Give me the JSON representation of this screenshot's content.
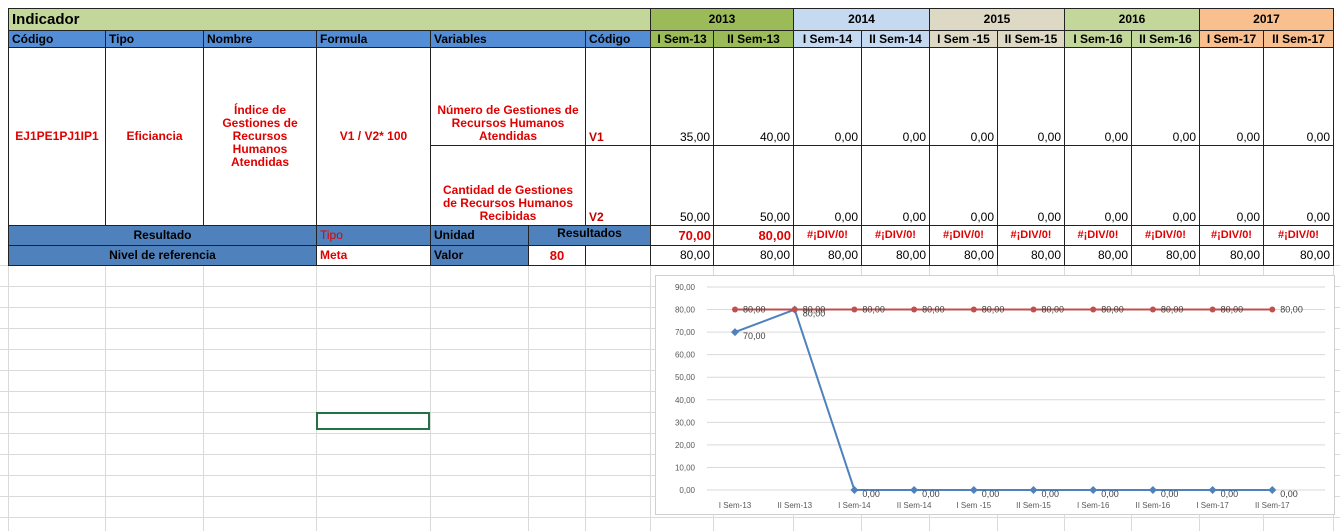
{
  "sheet": {
    "title": "Indicador",
    "years": [
      "2013",
      "2014",
      "2015",
      "2016",
      "2017"
    ],
    "headers": [
      "Código",
      "Tipo",
      "Nombre",
      "Formula",
      "Variables",
      "Código"
    ],
    "periods": [
      "I Sem-13",
      "II Sem-13",
      "I Sem-14",
      "II Sem-14",
      "I Sem -15",
      "II Sem-15",
      "I Sem-16",
      "II Sem-16",
      "I Sem-17",
      "II Sem-17"
    ],
    "codigo": "EJ1PE1PJ1IP1",
    "tipo": "Eficiancia",
    "nombre": "Índice de Gestiones de Recursos Humanos Atendidas",
    "formula": "V1 / V2* 100",
    "variables": [
      {
        "name": "Número de Gestiones de Recursos Humanos Atendidas",
        "code": "V1",
        "values": [
          "35,00",
          "40,00",
          "0,00",
          "0,00",
          "0,00",
          "0,00",
          "0,00",
          "0,00",
          "0,00",
          "0,00"
        ]
      },
      {
        "name": "Cantidad de Gestiones de Recursos Humanos Recibidas",
        "code": "V2",
        "values": [
          "50,00",
          "50,00",
          "0,00",
          "0,00",
          "0,00",
          "0,00",
          "0,00",
          "0,00",
          "0,00",
          "0,00"
        ]
      }
    ],
    "resultado": {
      "label": "Resultado",
      "tipo": "Tipo",
      "unidad": "Unidad",
      "resultados": "Resultados",
      "values": [
        "70,00",
        "80,00",
        "#¡DIV/0!",
        "#¡DIV/0!",
        "#¡DIV/0!",
        "#¡DIV/0!",
        "#¡DIV/0!",
        "#¡DIV/0!",
        "#¡DIV/0!",
        "#¡DIV/0!"
      ]
    },
    "referencia": {
      "label": "Nivel de referencia",
      "meta": "Meta",
      "valor": "Valor",
      "valor_value": 80,
      "values": [
        "80,00",
        "80,00",
        "80,00",
        "80,00",
        "80,00",
        "80,00",
        "80,00",
        "80,00",
        "80,00",
        "80,00"
      ]
    }
  },
  "chart_data": {
    "type": "line",
    "categories": [
      "I Sem-13",
      "II Sem-13",
      "I Sem-14",
      "II Sem-14",
      "I Sem -15",
      "II Sem-15",
      "I Sem-16",
      "II Sem-16",
      "I Sem-17",
      "II Sem-17"
    ],
    "series": [
      {
        "color": "#4f81bd",
        "values": [
          70,
          80,
          0,
          0,
          0,
          0,
          0,
          0,
          0,
          0
        ],
        "value_labels": [
          "70,00",
          "80,00",
          "0,00",
          "0,00",
          "0,00",
          "0,00",
          "0,00",
          "0,00",
          "0,00",
          "0,00"
        ]
      },
      {
        "color": "#c0504d",
        "values": [
          80,
          80,
          80,
          80,
          80,
          80,
          80,
          80,
          80,
          80
        ],
        "value_labels": [
          "80,00",
          "80,00",
          "80,00",
          "80,00",
          "80,00",
          "80,00",
          "80,00",
          "80,00",
          "80,00",
          "80,00"
        ]
      }
    ],
    "ylim": [
      0,
      90
    ],
    "yticks": [
      {
        "value": 0,
        "label": "0,00"
      },
      {
        "value": 10,
        "label": "10,00"
      },
      {
        "value": 20,
        "label": "20,00"
      },
      {
        "value": 30,
        "label": "30,00"
      },
      {
        "value": 40,
        "label": "40,00"
      },
      {
        "value": 50,
        "label": "50,00"
      },
      {
        "value": 60,
        "label": "60,00"
      },
      {
        "value": 70,
        "label": "70,00"
      },
      {
        "value": 80,
        "label": "80,00"
      },
      {
        "value": 90,
        "label": "90,00"
      }
    ],
    "grid": true
  }
}
